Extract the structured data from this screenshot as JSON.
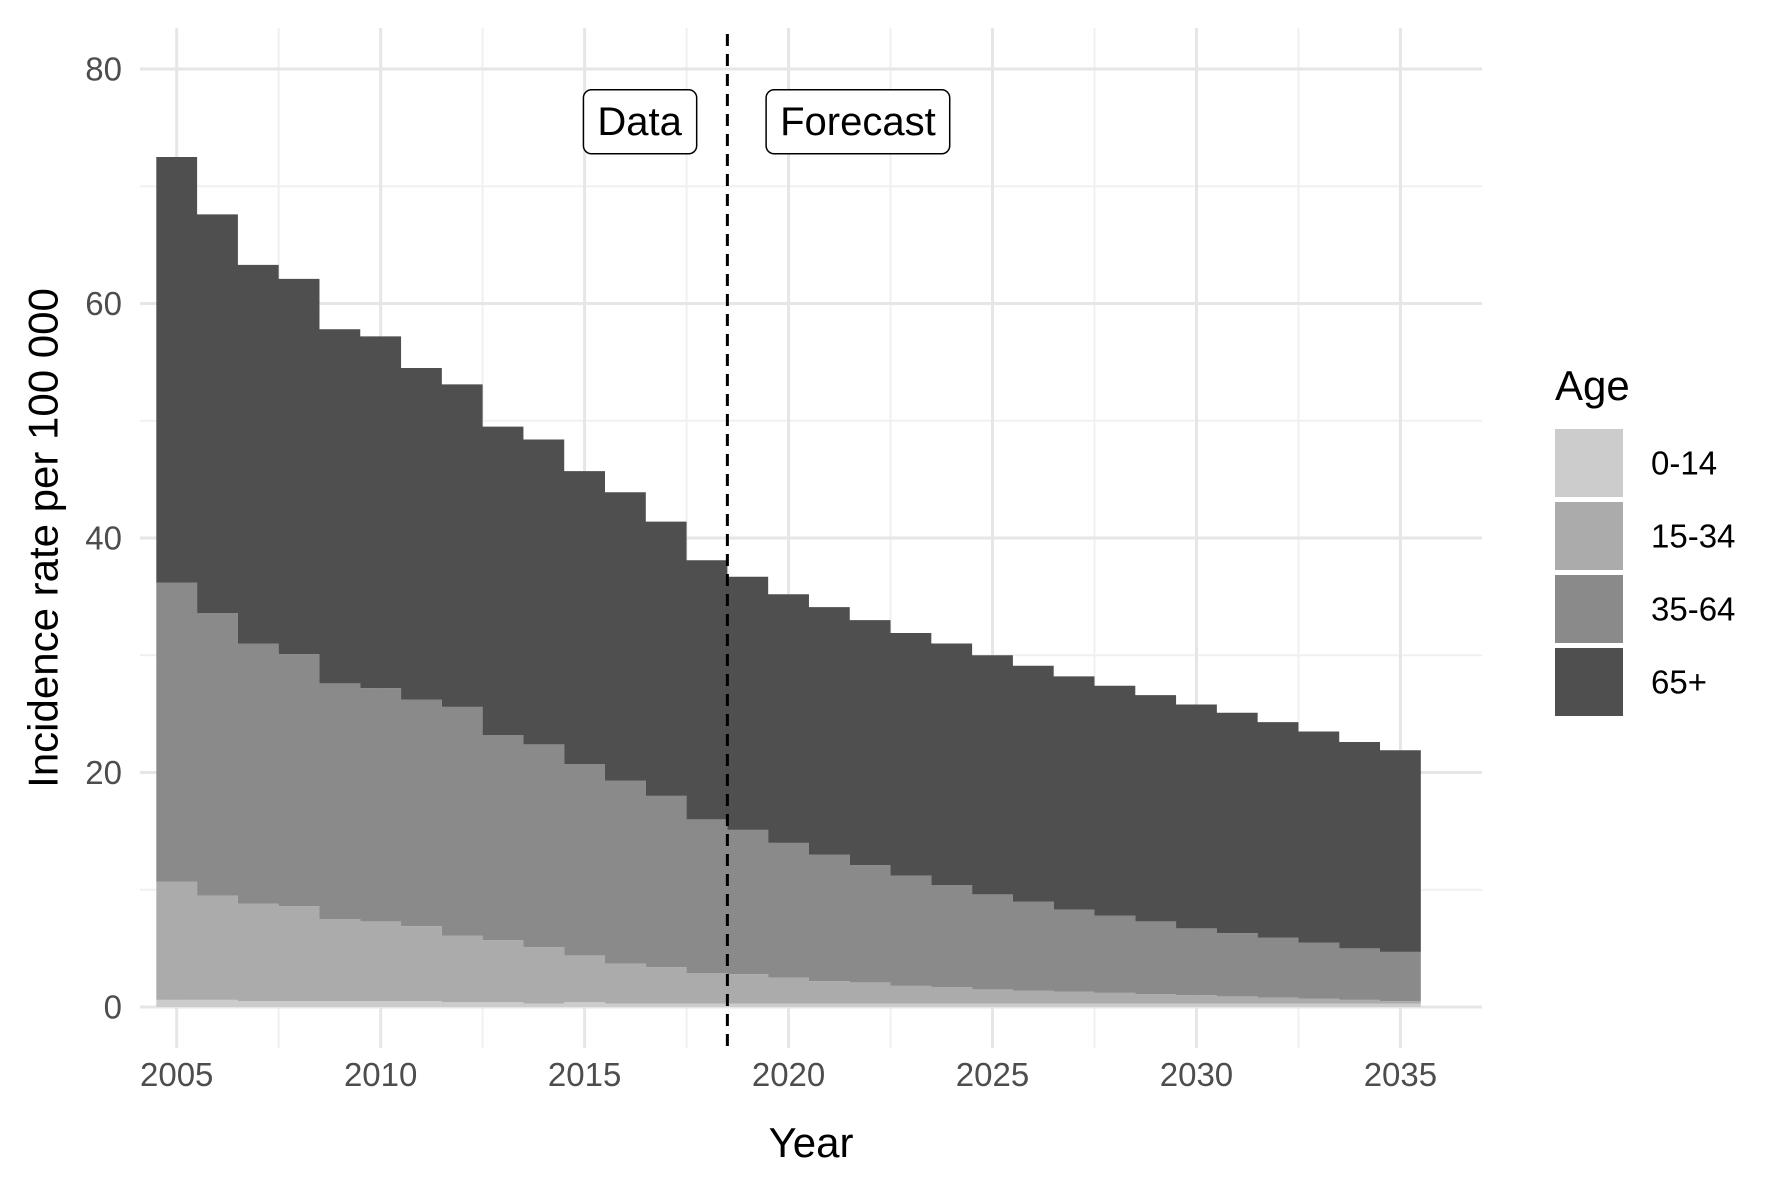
{
  "chart_data": {
    "type": "area",
    "stacked": true,
    "step": true,
    "xlabel": "Year",
    "ylabel": "Incidence rate per 100 000",
    "xlim": [
      2004.1,
      2037.0
    ],
    "ylim": [
      -3.5,
      83.5
    ],
    "x_ticks": [
      2005,
      2010,
      2015,
      2020,
      2025,
      2030,
      2035
    ],
    "y_ticks": [
      0,
      20,
      40,
      60,
      80
    ],
    "grid": true,
    "legend": {
      "title": "Age",
      "position": "right"
    },
    "x": [
      2005,
      2006,
      2007,
      2008,
      2009,
      2010,
      2011,
      2012,
      2013,
      2014,
      2015,
      2016,
      2017,
      2018,
      2019,
      2020,
      2021,
      2022,
      2023,
      2024,
      2025,
      2026,
      2027,
      2028,
      2029,
      2030,
      2031,
      2032,
      2033,
      2034,
      2035
    ],
    "series": [
      {
        "name": "0-14",
        "color": "#cccccc",
        "values": [
          0.6,
          0.6,
          0.5,
          0.5,
          0.5,
          0.5,
          0.5,
          0.4,
          0.4,
          0.3,
          0.4,
          0.3,
          0.3,
          0.3,
          0.3,
          0.3,
          0.3,
          0.3,
          0.3,
          0.3,
          0.3,
          0.3,
          0.3,
          0.3,
          0.3,
          0.3,
          0.3,
          0.3,
          0.3,
          0.3,
          0.3
        ]
      },
      {
        "name": "15-34",
        "color": "#ababab",
        "values": [
          10.1,
          8.9,
          8.3,
          8.1,
          7.0,
          6.8,
          6.4,
          5.7,
          5.3,
          4.8,
          4.0,
          3.4,
          3.1,
          2.6,
          2.5,
          2.2,
          1.9,
          1.8,
          1.5,
          1.4,
          1.2,
          1.1,
          1.0,
          0.9,
          0.8,
          0.7,
          0.6,
          0.5,
          0.4,
          0.3,
          0.2
        ]
      },
      {
        "name": "35-64",
        "color": "#8a8a8a",
        "values": [
          25.5,
          24.1,
          22.2,
          21.5,
          20.1,
          19.9,
          19.3,
          19.5,
          17.5,
          17.3,
          16.3,
          15.6,
          14.6,
          13.1,
          12.3,
          11.5,
          10.8,
          10.0,
          9.4,
          8.7,
          8.1,
          7.6,
          7.0,
          6.6,
          6.2,
          5.7,
          5.4,
          5.1,
          4.8,
          4.4,
          4.2
        ]
      },
      {
        "name": "65+",
        "color": "#4f4f4f",
        "values": [
          36.3,
          34.0,
          32.3,
          32.0,
          30.2,
          30.0,
          28.3,
          27.5,
          26.3,
          26.0,
          25.0,
          24.6,
          23.4,
          22.1,
          21.6,
          21.2,
          21.1,
          20.9,
          20.7,
          20.6,
          20.4,
          20.1,
          19.9,
          19.6,
          19.3,
          19.1,
          18.8,
          18.4,
          18.0,
          17.6,
          17.2
        ]
      }
    ],
    "vline": {
      "x": 2018.5,
      "style": "dashed"
    },
    "annotations": [
      {
        "text": "Data",
        "x": 2016.35,
        "y": 75.5
      },
      {
        "text": "Forecast",
        "x": 2021.7,
        "y": 75.5
      }
    ]
  }
}
